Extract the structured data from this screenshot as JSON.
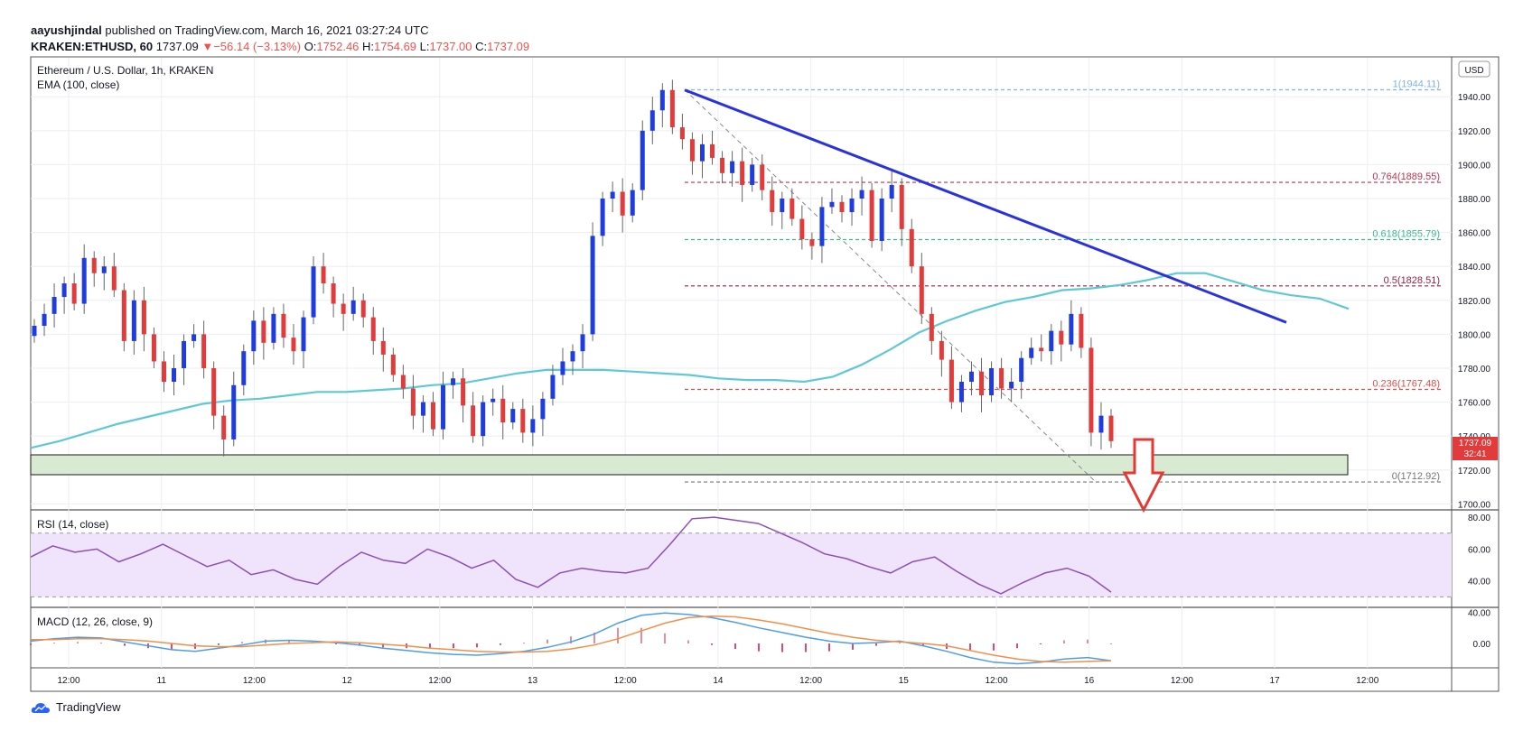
{
  "header": {
    "author": "aayushjindal",
    "published": "published on TradingView.com, March 16, 2021 03:27:24 UTC",
    "symbol_line": "KRAKEN:ETHUSD, 60",
    "last": "1737.09",
    "change": "−56.14 (−3.13%)",
    "o_label": "O:",
    "o": "1752.46",
    "h_label": "H:",
    "h": "1754.69",
    "l_label": "L:",
    "l": "1737.00",
    "c_label": "C:",
    "c": "1737.09"
  },
  "legend": {
    "title": "Ethereum / U.S. Dollar, 1h, KRAKEN",
    "ema": "EMA (100, close)",
    "currency": "USD"
  },
  "price_badge": {
    "value": "1737.09",
    "time": "32:41"
  },
  "rsi": {
    "title": "RSI (14, close)"
  },
  "macd": {
    "title": "MACD (12, 26, close, 9)"
  },
  "footer": {
    "brand": "TradingView"
  },
  "colors": {
    "bull": "#1e3ce0",
    "bear": "#e23b3b",
    "ema": "#5fc8d6",
    "trendline": "#2a32e0",
    "support_fill": "#d9ead3",
    "rsi_line": "#8e4fb5",
    "rsi_band": "#efe4fb",
    "macd_line": "#4e9ee6",
    "signal_line": "#f08f4a",
    "hist_pos": "#e98aa1",
    "arrow": "#e53935"
  },
  "chart_data": [
    {
      "type": "line",
      "title": "Ethereum / U.S. Dollar, 1h, KRAKEN",
      "x_ticks": [
        "12:00",
        "11",
        "12:00",
        "12",
        "12:00",
        "13",
        "12:00",
        "14",
        "12:00",
        "15",
        "12:00",
        "16",
        "12:00",
        "17",
        "12:00"
      ],
      "y_ticks": [
        "1940.00",
        "1920.00",
        "1900.00",
        "1880.00",
        "1860.00",
        "1840.00",
        "1820.00",
        "1800.00",
        "1780.00",
        "1760.00",
        "1740.00",
        "1720.00",
        "1700.00"
      ],
      "ylim": [
        1697,
        1963
      ],
      "series": [
        {
          "name": "EMA (100, close)",
          "values": [
            1733,
            1737,
            1742,
            1747,
            1751,
            1755,
            1759,
            1761,
            1762,
            1764,
            1766,
            1766,
            1767,
            1768,
            1770,
            1771,
            1774,
            1777,
            1779,
            1779,
            1779,
            1778,
            1777,
            1776,
            1774,
            1773,
            1773,
            1772,
            1775,
            1782,
            1791,
            1801,
            1808,
            1814,
            1819,
            1822,
            1826,
            1827,
            1829,
            1832,
            1836,
            1836,
            1831,
            1826,
            1823,
            1821,
            1815
          ]
        }
      ],
      "fibonacci": [
        {
          "label": "1(1944.11)",
          "value": 1944.11
        },
        {
          "label": "0.764(1889.55)",
          "value": 1889.55
        },
        {
          "label": "0.618(1855.79)",
          "value": 1855.79
        },
        {
          "label": "0.5(1828.51)",
          "value": 1828.51
        },
        {
          "label": "0.236(1767.48)",
          "value": 1767.48
        },
        {
          "label": "0(1712.92)",
          "value": 1712.92
        }
      ],
      "support_zone": [
        1719,
        1730
      ],
      "trendline": [
        [
          0.0,
          1944
        ],
        [
          1.0,
          1807
        ]
      ]
    },
    {
      "type": "line",
      "title": "RSI (14, close)",
      "y_ticks": [
        "80.00",
        "60.00",
        "40.00"
      ],
      "ylim": [
        24,
        84
      ],
      "bands": [
        30,
        70
      ],
      "series": [
        {
          "name": "RSI",
          "values": [
            55,
            62,
            58,
            60,
            52,
            57,
            63,
            56,
            49,
            53,
            44,
            47,
            41,
            38,
            49,
            58,
            53,
            51,
            60,
            55,
            48,
            53,
            41,
            36,
            45,
            48,
            46,
            45,
            48,
            63,
            79,
            80,
            78,
            76,
            70,
            64,
            57,
            54,
            49,
            45,
            52,
            55,
            46,
            38,
            32,
            39,
            45,
            48,
            43,
            33
          ]
        }
      ]
    },
    {
      "type": "line",
      "title": "MACD (12, 26, close, 9)",
      "y_ticks": [
        "40.00",
        "0.00"
      ],
      "ylim": [
        -30,
        45
      ],
      "series": [
        {
          "name": "MACD",
          "values": [
            3,
            6,
            8,
            7,
            2,
            -3,
            -8,
            -10,
            -6,
            -2,
            3,
            4,
            3,
            1,
            -2,
            -6,
            -9,
            -12,
            -14,
            -15,
            -13,
            -10,
            -5,
            2,
            12,
            26,
            36,
            39,
            37,
            33,
            27,
            20,
            14,
            8,
            3,
            0,
            1,
            3,
            -3,
            -10,
            -18,
            -24,
            -26,
            -24,
            -20,
            -18,
            -22
          ]
        },
        {
          "name": "Signal",
          "values": [
            5,
            5,
            6,
            6,
            5,
            3,
            0,
            -3,
            -4,
            -4,
            -2,
            0,
            1,
            2,
            1,
            -1,
            -3,
            -6,
            -8,
            -10,
            -11,
            -11,
            -10,
            -7,
            -2,
            6,
            16,
            26,
            33,
            35,
            34,
            30,
            25,
            19,
            13,
            8,
            4,
            2,
            0,
            -3,
            -9,
            -15,
            -20,
            -23,
            -24,
            -23,
            -22
          ]
        }
      ]
    }
  ]
}
